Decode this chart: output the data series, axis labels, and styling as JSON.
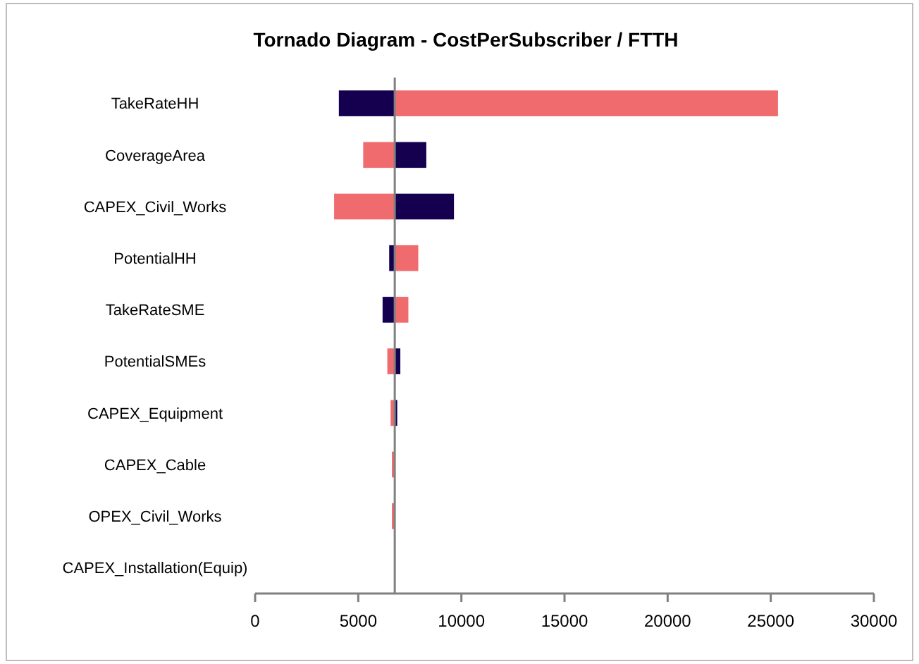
{
  "chart_data": {
    "type": "bar",
    "orientation": "horizontal",
    "title": "Tornado Diagram - CostPerSubscriber / FTTH",
    "categories": [
      "TakeRateHH",
      "CoverageArea",
      "CAPEX_Civil_Works",
      "PotentialHH",
      "TakeRateSME",
      "PotentialSMEs",
      "CAPEX_Equipment",
      "CAPEX_Cable",
      "OPEX_Civil_Works",
      "CAPEX_Installation(Equip)"
    ],
    "series": [
      {
        "color": "#14004f",
        "base": [
          6770,
          6770,
          6770,
          6770,
          6770,
          6770,
          6770,
          null,
          null,
          null
        ],
        "values": [
          -2710,
          1530,
          2870,
          -270,
          -590,
          270,
          120,
          null,
          null,
          null
        ]
      },
      {
        "color": "#ef6b6e",
        "base": [
          6770,
          6770,
          6770,
          6770,
          6770,
          6770,
          6770,
          6770,
          6770,
          null
        ],
        "values": [
          18580,
          -1530,
          -2940,
          1140,
          660,
          -360,
          -200,
          -140,
          -140,
          null
        ]
      }
    ],
    "xlim": [
      0,
      30000
    ],
    "xticks": [
      0,
      5000,
      10000,
      15000,
      20000,
      25000,
      30000
    ],
    "ref_lines": [
      {
        "axis": "x",
        "value": 6770,
        "color": "#808080"
      }
    ],
    "grid": false
  }
}
